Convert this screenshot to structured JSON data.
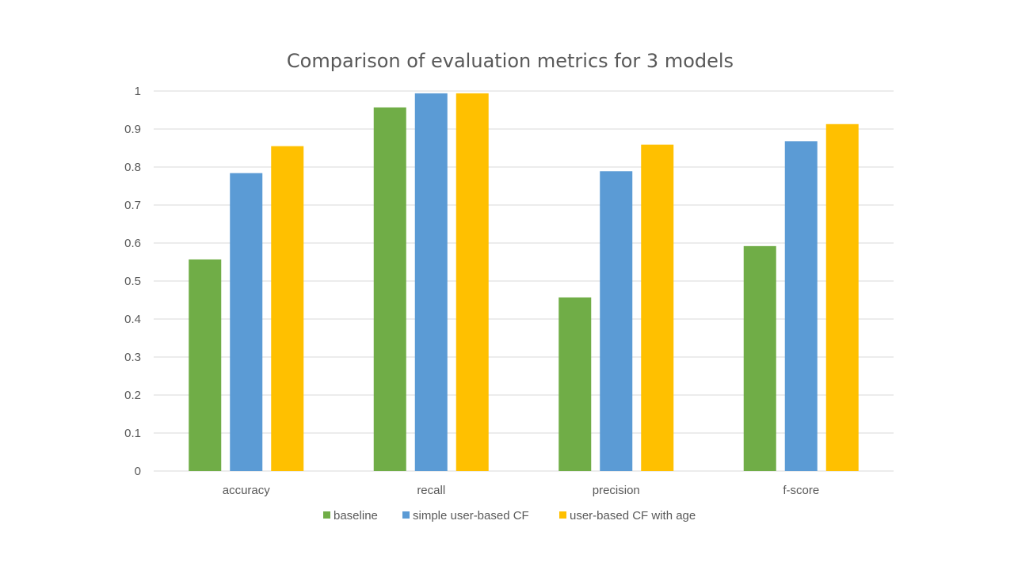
{
  "chart_data": {
    "type": "bar",
    "title": "Comparison of evaluation metrics for 3 models",
    "categories": [
      "accuracy",
      "recall",
      "precision",
      "f-score"
    ],
    "series": [
      {
        "name": "baseline",
        "color": "#70ad47",
        "values": [
          0.557,
          0.957,
          0.457,
          0.592
        ]
      },
      {
        "name": "simple user-based CF",
        "color": "#5b9bd5",
        "values": [
          0.784,
          0.994,
          0.789,
          0.868
        ]
      },
      {
        "name": "user-based CF with age",
        "color": "#ffc000",
        "values": [
          0.855,
          0.994,
          0.859,
          0.913
        ]
      }
    ],
    "ylim": [
      0,
      1
    ],
    "yticks": [
      "0",
      "0.1",
      "0.2",
      "0.3",
      "0.4",
      "0.5",
      "0.6",
      "0.7",
      "0.8",
      "0.9",
      "1"
    ],
    "grid": true,
    "legend_position": "bottom"
  }
}
